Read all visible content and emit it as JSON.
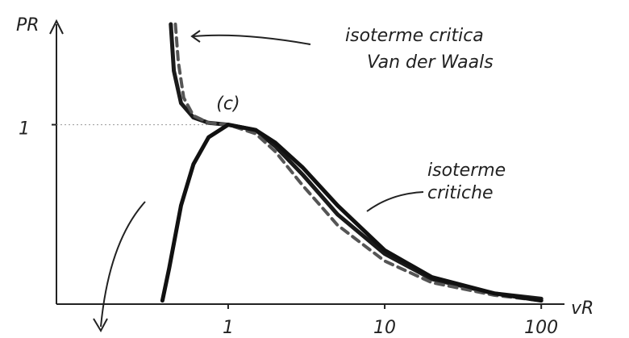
{
  "chart_data": {
    "type": "line",
    "ylabel": "PR",
    "xlabel": "vR",
    "xscale": "log",
    "xlim": [
      0.08,
      125
    ],
    "xticks": [
      1,
      10,
      100
    ],
    "ylim": [
      0,
      1.56
    ],
    "yticks": [
      1
    ],
    "guide": true,
    "series": [
      {
        "color": "#1a1a1a",
        "dash": false,
        "x": [
          0.43,
          0.45,
          0.5,
          0.6,
          0.75,
          1,
          1.5,
          2,
          3,
          5,
          10,
          20,
          50,
          100
        ],
        "values": [
          1.56,
          1.3,
          1.12,
          1.04,
          1.01,
          1,
          0.97,
          0.88,
          0.72,
          0.5,
          0.28,
          0.14,
          0.06,
          0.03
        ]
      },
      {
        "color": "#555555",
        "dash": true,
        "x": [
          0.46,
          0.48,
          0.52,
          0.6,
          0.75,
          1,
          1.5,
          2,
          3,
          5,
          10,
          20,
          50,
          100
        ],
        "values": [
          1.56,
          1.35,
          1.15,
          1.05,
          1.01,
          1,
          0.95,
          0.85,
          0.66,
          0.44,
          0.24,
          0.12,
          0.05,
          0.02
        ]
      },
      {
        "color": "#111111",
        "dash": false,
        "x": [
          0.38,
          0.42,
          0.5,
          0.6,
          0.75,
          1,
          1.5,
          2,
          3,
          5,
          10,
          20,
          50,
          100
        ],
        "values": [
          0.02,
          0.2,
          0.55,
          0.78,
          0.93,
          1,
          0.97,
          0.9,
          0.76,
          0.55,
          0.3,
          0.15,
          0.06,
          0.02
        ]
      }
    ],
    "annotations": [
      "(c)",
      "isoterme critica",
      "Van der Waals",
      "isoterme",
      "critiche"
    ]
  }
}
